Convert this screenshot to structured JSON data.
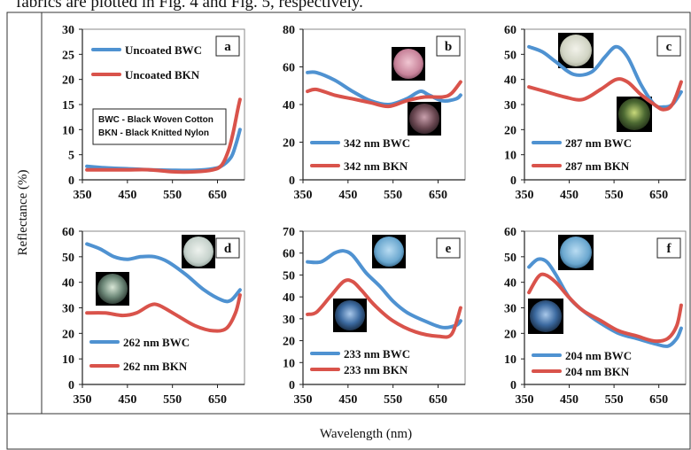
{
  "caption_fragment": "fabrics are plotted in Fig. 4 and Fig. 5, respectively.",
  "figure": {
    "ylabel": "Reflectance (%)",
    "xlabel": "Wavelength (nm)"
  },
  "colors": {
    "BWC": "#4F92D1",
    "BKN": "#D9534B"
  },
  "chart_data": [
    {
      "panel": "a",
      "type": "line",
      "xlim": [
        350,
        710
      ],
      "xticks": [
        350,
        450,
        550,
        650
      ],
      "ylim": [
        0,
        30
      ],
      "yticks": [
        0,
        5,
        10,
        15,
        20,
        25,
        30
      ],
      "note_lines": [
        "BWC - Black Woven Cotton",
        "BKN - Black Knitted Nylon"
      ],
      "series": [
        {
          "name": "Uncoated BWC",
          "x": [
            360,
            400,
            450,
            500,
            550,
            600,
            640,
            660,
            680,
            690,
            700
          ],
          "y": [
            2.7,
            2.4,
            2.2,
            2.0,
            1.9,
            1.9,
            2.2,
            2.8,
            4.5,
            6.8,
            10.0
          ]
        },
        {
          "name": "Uncoated BKN",
          "x": [
            360,
            400,
            450,
            500,
            550,
            600,
            640,
            660,
            675,
            685,
            695,
            700
          ],
          "y": [
            2.0,
            2.0,
            2.0,
            2.0,
            1.6,
            1.6,
            2.0,
            3.0,
            6.0,
            9.5,
            14.0,
            16.0
          ]
        }
      ]
    },
    {
      "panel": "b",
      "type": "line",
      "xlim": [
        350,
        710
      ],
      "xticks": [
        350,
        450,
        550,
        650
      ],
      "ylim": [
        0,
        80
      ],
      "yticks": [
        0,
        20,
        40,
        60,
        80
      ],
      "series": [
        {
          "name": "342 nm BWC",
          "x": [
            360,
            380,
            420,
            460,
            500,
            540,
            580,
            610,
            630,
            660,
            690,
            700
          ],
          "y": [
            57,
            57,
            53,
            47,
            42,
            40,
            43,
            47,
            45,
            42,
            43,
            45
          ]
        },
        {
          "name": "342 nm BKN",
          "x": [
            360,
            380,
            420,
            460,
            500,
            540,
            580,
            620,
            660,
            680,
            700
          ],
          "y": [
            47,
            48,
            45,
            43,
            41,
            39,
            42,
            44,
            44,
            46,
            52
          ]
        }
      ]
    },
    {
      "panel": "c",
      "type": "line",
      "xlim": [
        350,
        710
      ],
      "xticks": [
        350,
        450,
        550,
        650
      ],
      "ylim": [
        0,
        60
      ],
      "yticks": [
        0,
        10,
        20,
        30,
        40,
        50,
        60
      ],
      "series": [
        {
          "name": "287 nm BWC",
          "x": [
            360,
            390,
            420,
            460,
            500,
            530,
            555,
            580,
            610,
            640,
            660,
            680,
            700
          ],
          "y": [
            53,
            51,
            47,
            42,
            43,
            49,
            53,
            49,
            38,
            30,
            29,
            30,
            35
          ]
        },
        {
          "name": "287 nm BKN",
          "x": [
            360,
            400,
            440,
            480,
            520,
            555,
            580,
            610,
            640,
            660,
            680,
            700
          ],
          "y": [
            37,
            35,
            33,
            32,
            36,
            40,
            39,
            34,
            30,
            28,
            30,
            39
          ]
        }
      ]
    },
    {
      "panel": "d",
      "type": "line",
      "xlim": [
        350,
        710
      ],
      "xticks": [
        350,
        450,
        550,
        650
      ],
      "ylim": [
        0,
        60
      ],
      "yticks": [
        0,
        10,
        20,
        30,
        40,
        50,
        60
      ],
      "series": [
        {
          "name": "262 nm BWC",
          "x": [
            360,
            390,
            420,
            450,
            480,
            510,
            540,
            580,
            620,
            660,
            680,
            700
          ],
          "y": [
            55,
            53,
            50,
            49,
            50,
            50,
            48,
            43,
            37,
            33,
            33,
            37
          ]
        },
        {
          "name": "262 nm BKN",
          "x": [
            360,
            400,
            440,
            470,
            500,
            520,
            560,
            600,
            640,
            670,
            690,
            700
          ],
          "y": [
            28,
            28,
            27,
            28,
            31,
            31,
            27,
            23,
            21,
            22,
            28,
            35
          ]
        }
      ]
    },
    {
      "panel": "e",
      "type": "line",
      "xlim": [
        350,
        710
      ],
      "xticks": [
        350,
        450,
        550,
        650
      ],
      "ylim": [
        0,
        70
      ],
      "yticks": [
        0,
        10,
        20,
        30,
        40,
        50,
        60,
        70
      ],
      "series": [
        {
          "name": "233 nm BWC",
          "x": [
            360,
            390,
            420,
            440,
            460,
            490,
            520,
            550,
            580,
            620,
            660,
            690,
            700
          ],
          "y": [
            56,
            56,
            60,
            61,
            59,
            51,
            45,
            38,
            33,
            29,
            26,
            27,
            29
          ]
        },
        {
          "name": "233 nm BKN",
          "x": [
            360,
            380,
            410,
            440,
            460,
            480,
            510,
            550,
            600,
            650,
            680,
            700
          ],
          "y": [
            32,
            33,
            40,
            47,
            47,
            43,
            36,
            29,
            24,
            22,
            23,
            35
          ]
        }
      ]
    },
    {
      "panel": "f",
      "type": "line",
      "xlim": [
        350,
        710
      ],
      "xticks": [
        350,
        450,
        550,
        650
      ],
      "ylim": [
        0,
        60
      ],
      "yticks": [
        0,
        10,
        20,
        30,
        40,
        50,
        60
      ],
      "series": [
        {
          "name": "204 nm BWC",
          "x": [
            360,
            380,
            400,
            420,
            450,
            480,
            520,
            560,
            600,
            640,
            670,
            690,
            700
          ],
          "y": [
            46,
            49,
            48,
            43,
            34,
            29,
            24,
            20,
            18,
            16,
            15,
            18,
            22
          ]
        },
        {
          "name": "204 nm BKN",
          "x": [
            360,
            380,
            395,
            420,
            450,
            480,
            520,
            560,
            600,
            640,
            670,
            690,
            700
          ],
          "y": [
            36,
            42,
            43,
            40,
            34,
            29,
            25,
            21,
            19,
            17,
            18,
            23,
            31
          ]
        }
      ]
    }
  ]
}
